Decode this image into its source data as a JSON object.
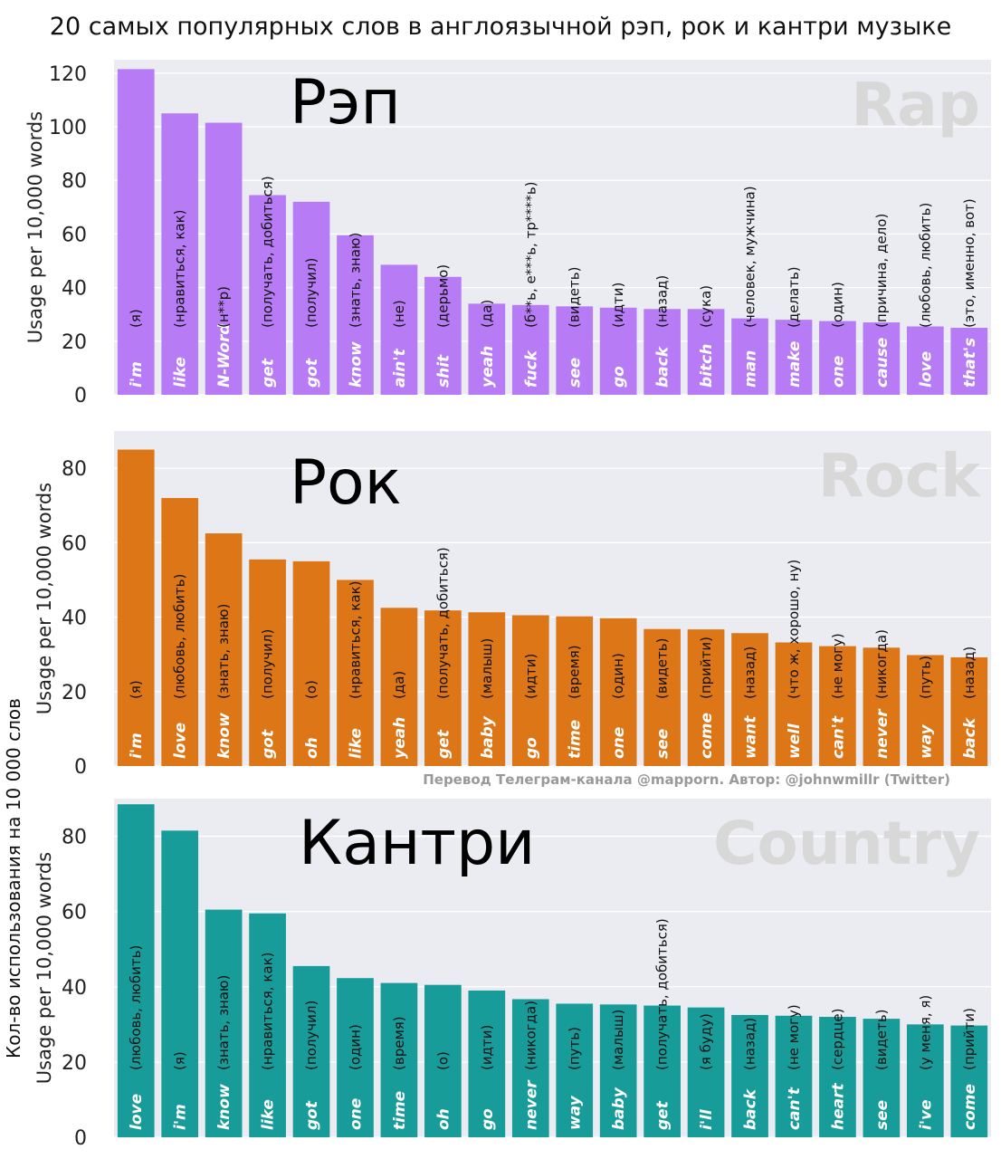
{
  "title": "20 самых популярных слов в англоязычной рэп, рок и кантри музыке",
  "overall_ylabel": "Кол-во использования на 10 000 слов",
  "credit": "Перевод Телеграм-канала @mapporn. Автор: @johnwmillr (Twitter)",
  "colors": {
    "background": "#ebebf2",
    "grid": "#ffffff",
    "rap": "#b77cf5",
    "rock": "#dd7617",
    "country": "#179c9a",
    "watermark": "#d8d8d8"
  },
  "chart_data": [
    {
      "type": "bar",
      "genre_ru": "Рэп",
      "genre_en": "Rap",
      "ylabel": "Usage per 10,000 words",
      "ylim": [
        0,
        125
      ],
      "yticks": [
        0,
        20,
        40,
        60,
        80,
        100,
        120
      ],
      "categories": [
        "i'm",
        "like",
        "N-Word",
        "get",
        "got",
        "know",
        "ain't",
        "shit",
        "yeah",
        "fuck",
        "see",
        "go",
        "back",
        "bitch",
        "man",
        "make",
        "one",
        "cause",
        "love",
        "that's"
      ],
      "translations": [
        "(я)",
        "(нравиться, как)",
        "(н**р)",
        "(получать, добиться)",
        "(получил)",
        "(знать, знаю)",
        "(не)",
        "(дерьмо)",
        "(да)",
        "(б**ь, е***ь, тр****ь)",
        "(видеть)",
        "(идти)",
        "(назад)",
        "(сука)",
        "(человек, мужчина)",
        "(делать)",
        "(один)",
        "(причина, дело)",
        "(любовь, любить)",
        "(это, именно, вот)"
      ],
      "values": [
        121.5,
        105,
        101.5,
        74.5,
        72,
        59.5,
        48.5,
        44,
        34,
        33.5,
        33,
        32.5,
        32,
        32,
        28.5,
        28,
        27.5,
        27,
        25.5,
        25
      ]
    },
    {
      "type": "bar",
      "genre_ru": "Рок",
      "genre_en": "Rock",
      "ylabel": "Usage per 10,000 words",
      "ylim": [
        0,
        90
      ],
      "yticks": [
        0,
        20,
        40,
        60,
        80
      ],
      "categories": [
        "i'm",
        "love",
        "know",
        "got",
        "oh",
        "like",
        "yeah",
        "get",
        "baby",
        "go",
        "time",
        "one",
        "see",
        "come",
        "want",
        "well",
        "can't",
        "never",
        "way",
        "back"
      ],
      "translations": [
        "(я)",
        "(любовь, любить)",
        "(знать, знаю)",
        "(получил)",
        "(о)",
        "(нравиться, как)",
        "(да)",
        "(получать, добиться)",
        "(малыш)",
        "(идти)",
        "(время)",
        "(один)",
        "(видеть)",
        "(прийти)",
        "(назад)",
        "(что ж, хорошо, ну)",
        "(не могу)",
        "(никогда)",
        "(путь)",
        "(назад)"
      ],
      "values": [
        85,
        72,
        62.5,
        55.5,
        55,
        50,
        42.5,
        41.8,
        41.3,
        40.5,
        40.2,
        39.7,
        36.8,
        36.7,
        35.7,
        33.2,
        32.2,
        31.8,
        29.8,
        29.2
      ]
    },
    {
      "type": "bar",
      "genre_ru": "Кантри",
      "genre_en": "Country",
      "ylabel": "Usage per 10,000 words",
      "ylim": [
        0,
        90
      ],
      "yticks": [
        0,
        20,
        40,
        60,
        80
      ],
      "categories": [
        "love",
        "i'm",
        "know",
        "like",
        "got",
        "one",
        "time",
        "oh",
        "go",
        "never",
        "way",
        "baby",
        "get",
        "i'll",
        "back",
        "can't",
        "heart",
        "see",
        "i've",
        "come"
      ],
      "translations": [
        "(любовь, любить)",
        "(я)",
        "(знать, знаю)",
        "(нравиться, как)",
        "(получил)",
        "(один)",
        "(время)",
        "(о)",
        "(идти)",
        "(никогда)",
        "(путь)",
        "(малыш)",
        "(получать, добиться)",
        "(я буду)",
        "(назад)",
        "(не могу)",
        "(сердце)",
        "(видеть)",
        "(у меня, я)",
        "(прийти)"
      ],
      "values": [
        88.5,
        81.5,
        60.5,
        59.5,
        45.5,
        42.3,
        41,
        40.5,
        39,
        36.7,
        35.5,
        35.3,
        35,
        34.5,
        32.5,
        32.3,
        32,
        31.5,
        30,
        29.7
      ]
    }
  ]
}
